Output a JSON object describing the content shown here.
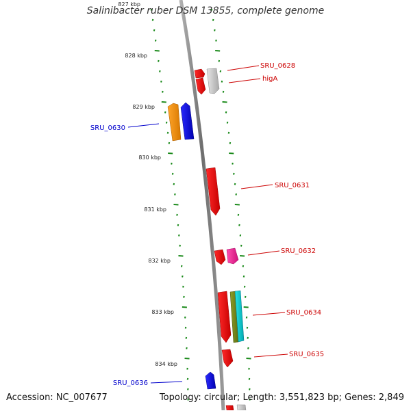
{
  "title": "Salinibacter ruber DSM 13855, complete genome",
  "footer": {
    "accession": "Accession: NC_007677",
    "summary": "Topology: circular; Length: 3,551,823 bp; Genes: 2,849"
  },
  "colors": {
    "backbone": "#888888",
    "tick": "#1a8a1a",
    "forward_label": "#cc0000",
    "reverse_label": "#0000cc"
  },
  "kbp_labels": [
    "827 kbp",
    "828 kbp",
    "829 kbp",
    "830 kbp",
    "831 kbp",
    "832 kbp",
    "833 kbp",
    "834 kbp"
  ],
  "genes": [
    {
      "id": "SRU_0628",
      "label": "SRU_0628",
      "strand": "forward",
      "color": "#e00000"
    },
    {
      "id": "higA",
      "label": "higA",
      "strand": "forward",
      "color": "#e00000"
    },
    {
      "id": "SRU_0630",
      "label": "SRU_0630",
      "strand": "reverse",
      "color": "#0000dd"
    },
    {
      "id": "SRU_0631",
      "label": "SRU_0631",
      "strand": "forward",
      "color": "#e00000"
    },
    {
      "id": "SRU_0632",
      "label": "SRU_0632",
      "strand": "forward",
      "color": "#e00000"
    },
    {
      "id": "SRU_0634",
      "label": "SRU_0634",
      "strand": "forward",
      "color": "#e00000"
    },
    {
      "id": "SRU_0635",
      "label": "SRU_0635",
      "strand": "forward",
      "color": "#e00000"
    },
    {
      "id": "SRU_0636",
      "label": "SRU_0636",
      "strand": "reverse",
      "color": "#0000dd"
    }
  ]
}
